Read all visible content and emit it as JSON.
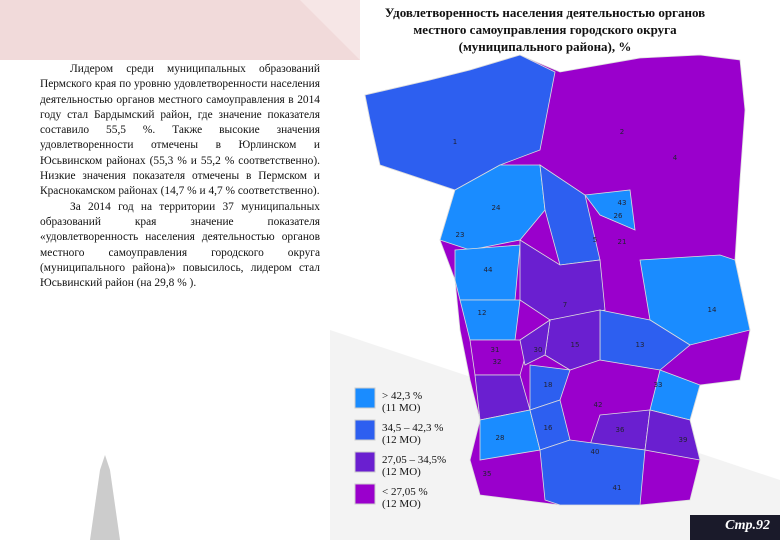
{
  "title": "Удовлетворенность населения деятельностью органов местного самоуправления городского округа (муниципального района), %",
  "paragraphs": [
    "Лидером среди муниципальных образований Пермского края по уровню удовлетворенности населения деятельностью органов местного самоуправления в 2014 году стал Бардымский район, где значение показателя составило 55,5 %. Также высокие значения удовлетворенности отмечены в Юрлинском и Юсьвинском районах (55,3 % и 55,2 % соответственно). Низкие значения показателя отмечены в Пермском и Краснокамском районах (14,7 % и 4,7 % соответственно).",
    "За 2014 год на территории 37 муниципальных образований края значение показателя «удовлетворенность населения деятельностью органов местного самоуправления городского округа (муниципального района)» повысилось, лидером стал Юсьвинский район (на 29,8 % )."
  ],
  "legend": [
    {
      "label": "> 42,3 %",
      "count": "(11 МО)"
    },
    {
      "label": "34,5 – 42,3 %",
      "count": "(12 МО)"
    },
    {
      "label": "27,05 – 34,5%",
      "count": "(12 МО)"
    },
    {
      "label": "< 27,05 %",
      "count": "(12 МО)"
    }
  ],
  "map": {
    "regions": [
      "1",
      "2",
      "4",
      "24",
      "43",
      "26",
      "5",
      "23",
      "21",
      "44",
      "7",
      "12",
      "14",
      "13",
      "31",
      "15",
      "30",
      "32",
      "18",
      "42",
      "33",
      "28",
      "16",
      "36",
      "39",
      "35",
      "40",
      "41"
    ]
  },
  "page_number": "Стр.92"
}
